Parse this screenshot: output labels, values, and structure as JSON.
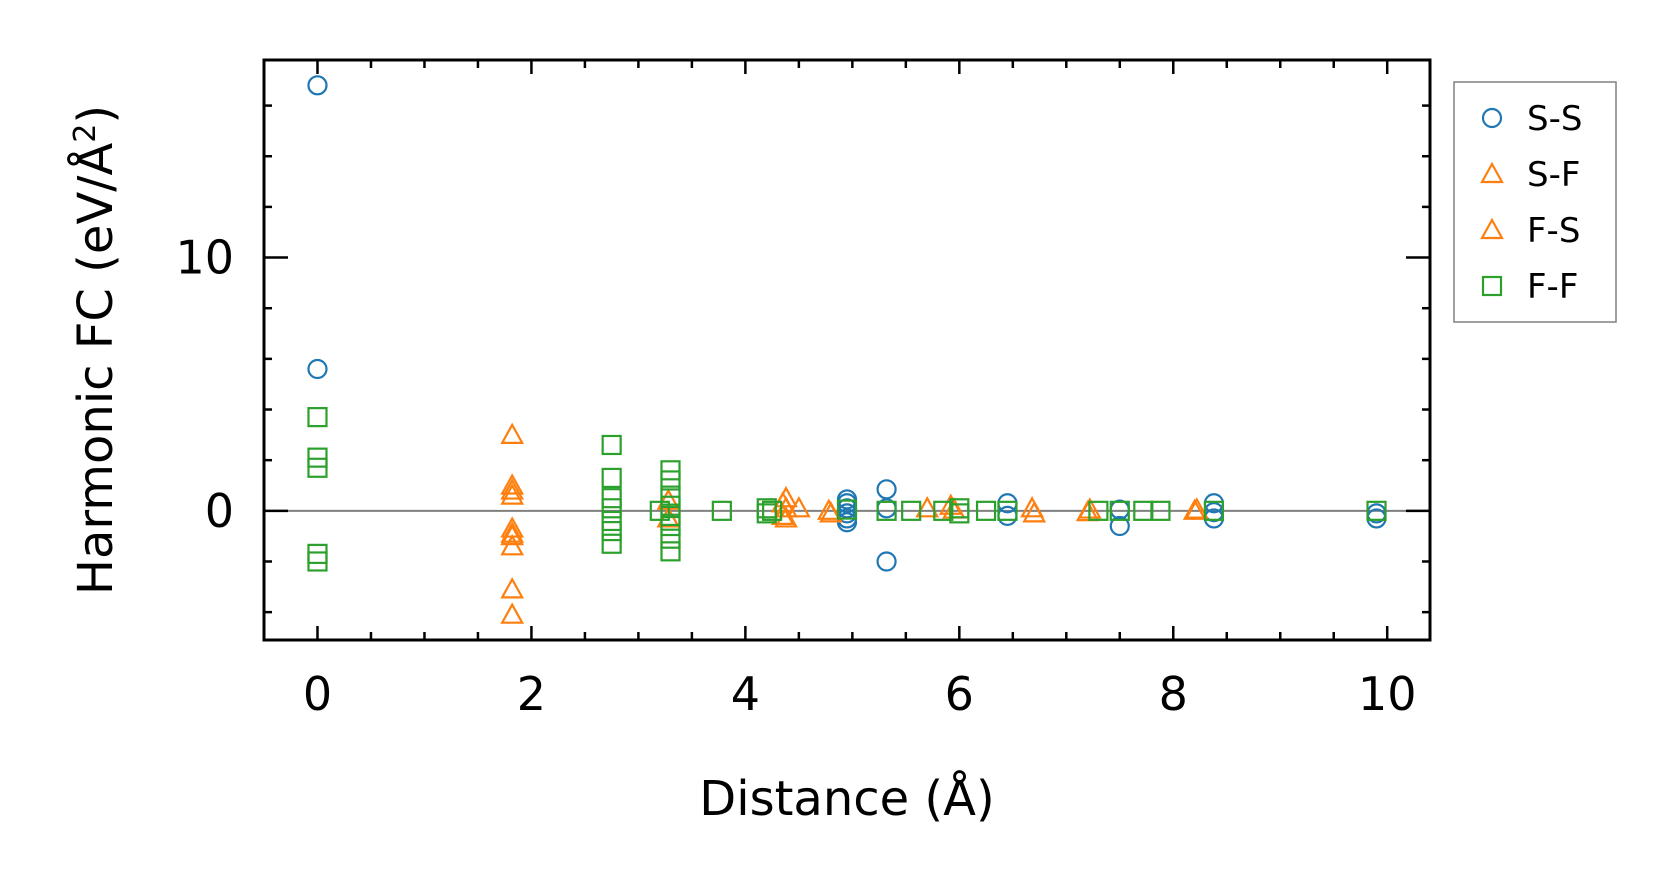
{
  "chart_data": {
    "type": "scatter",
    "title": "",
    "xlabel": "Distance (Å)",
    "ylabel_main": "Harmonic FC (eV/Å",
    "ylabel_sup": "2",
    "ylabel_close": ")",
    "xlim": [
      -0.5,
      10.4
    ],
    "ylim": [
      -5.1,
      17.8
    ],
    "x_ticks": [
      0,
      2,
      4,
      6,
      8,
      10
    ],
    "x_tick_labels": [
      "0",
      "2",
      "4",
      "6",
      "8",
      "10"
    ],
    "y_ticks": [
      0,
      10
    ],
    "y_tick_labels": [
      "0",
      "10"
    ],
    "x_minor_step": 0.5,
    "y_minor_step": 2,
    "grid": false,
    "zero_line": true,
    "legend_position": "outside-right-top",
    "legend": [
      "S-S",
      "S-F",
      "F-S",
      "F-F"
    ],
    "series": [
      {
        "name": "S-S",
        "marker": "circle",
        "color": "#1f77b4",
        "points": [
          [
            0,
            16.8
          ],
          [
            0,
            5.6
          ],
          [
            4.95,
            0.45
          ],
          [
            4.95,
            0.3
          ],
          [
            4.95,
            0.1
          ],
          [
            4.95,
            -0.1
          ],
          [
            4.95,
            -0.3
          ],
          [
            4.95,
            -0.45
          ],
          [
            5.32,
            0.85
          ],
          [
            5.32,
            0.1
          ],
          [
            5.32,
            -2.0
          ],
          [
            6.45,
            0.3
          ],
          [
            6.45,
            -0.2
          ],
          [
            7.5,
            0.05
          ],
          [
            7.5,
            -0.6
          ],
          [
            8.38,
            0.3
          ],
          [
            8.38,
            -0.05
          ],
          [
            8.38,
            -0.3
          ],
          [
            9.9,
            -0.1
          ],
          [
            9.9,
            -0.3
          ]
        ]
      },
      {
        "name": "S-F",
        "marker": "triangle",
        "color": "#ff7f0e",
        "points": [
          [
            1.82,
            3.0
          ],
          [
            1.82,
            1.0
          ],
          [
            1.82,
            0.6
          ],
          [
            1.82,
            -0.7
          ],
          [
            1.82,
            -1.0
          ],
          [
            1.82,
            -1.4
          ],
          [
            1.82,
            -3.1
          ],
          [
            1.82,
            -4.1
          ],
          [
            3.28,
            0.4
          ],
          [
            3.28,
            -0.3
          ],
          [
            4.38,
            0.5
          ],
          [
            4.38,
            0.1
          ],
          [
            4.38,
            -0.3
          ],
          [
            4.5,
            0.1
          ],
          [
            4.8,
            -0.1
          ],
          [
            5.7,
            0.1
          ],
          [
            5.95,
            0.05
          ],
          [
            6.7,
            -0.1
          ],
          [
            7.2,
            -0.05
          ],
          [
            8.2,
            0.0
          ]
        ]
      },
      {
        "name": "F-S",
        "marker": "triangle",
        "color": "#ff7f0e",
        "points": [
          [
            1.82,
            0.8
          ],
          [
            1.82,
            -0.9
          ],
          [
            4.35,
            0.3
          ],
          [
            4.35,
            -0.2
          ],
          [
            4.78,
            0.0
          ],
          [
            5.92,
            0.2
          ],
          [
            6.68,
            0.1
          ],
          [
            7.22,
            0.05
          ],
          [
            8.22,
            0.05
          ]
        ]
      },
      {
        "name": "F-F",
        "marker": "square",
        "color": "#2ca02c",
        "points": [
          [
            0,
            3.7
          ],
          [
            0,
            2.1
          ],
          [
            0,
            1.7
          ],
          [
            0,
            -1.7
          ],
          [
            0,
            -2.0
          ],
          [
            2.75,
            2.6
          ],
          [
            2.75,
            1.3
          ],
          [
            2.75,
            0.5
          ],
          [
            2.75,
            0.1
          ],
          [
            2.75,
            -0.4
          ],
          [
            2.75,
            -0.8
          ],
          [
            2.75,
            -1.3
          ],
          [
            3.2,
            0.0
          ],
          [
            3.3,
            1.6
          ],
          [
            3.3,
            1.2
          ],
          [
            3.3,
            0.6
          ],
          [
            3.3,
            0.2
          ],
          [
            3.3,
            -0.2
          ],
          [
            3.3,
            -0.6
          ],
          [
            3.3,
            -1.1
          ],
          [
            3.3,
            -1.6
          ],
          [
            3.78,
            0.0
          ],
          [
            4.2,
            0.1
          ],
          [
            4.2,
            -0.1
          ],
          [
            4.25,
            0.0
          ],
          [
            4.95,
            0.05
          ],
          [
            5.32,
            0.0
          ],
          [
            5.55,
            0.0
          ],
          [
            5.85,
            0.0
          ],
          [
            6.0,
            0.1
          ],
          [
            6.0,
            -0.1
          ],
          [
            6.25,
            0.0
          ],
          [
            6.45,
            0.0
          ],
          [
            7.3,
            0.0
          ],
          [
            7.5,
            0.0
          ],
          [
            7.72,
            0.0
          ],
          [
            7.88,
            0.0
          ],
          [
            8.38,
            0.0
          ],
          [
            9.9,
            0.0
          ]
        ]
      }
    ]
  }
}
